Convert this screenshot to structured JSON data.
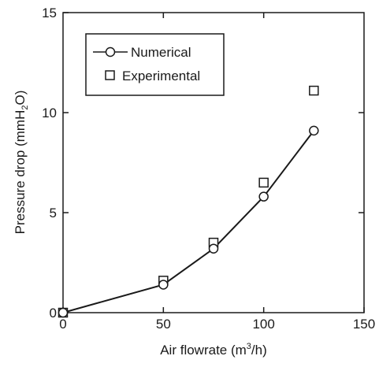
{
  "chart_data": {
    "type": "line",
    "xlabel": {
      "before_superscript": "Air flowrate (m",
      "superscript": "3",
      "after_superscript": "/h)"
    },
    "ylabel": {
      "before_subscript": "Pressure drop (mmH",
      "subscript": "2",
      "after_subscript": "O)"
    },
    "xlim": [
      0,
      150
    ],
    "ylim": [
      0,
      15
    ],
    "xticks": [
      0,
      50,
      100,
      150
    ],
    "yticks": [
      0,
      5,
      10,
      15
    ],
    "xtick_labels": [
      "0",
      "50",
      "100",
      "150"
    ],
    "ytick_labels": [
      "0",
      "5",
      "10",
      "15"
    ],
    "grid": false,
    "legend_position": "top-left",
    "series": [
      {
        "name": "Numerical",
        "style": "line with circle markers",
        "color": "#1a1a1a",
        "x": [
          0,
          50,
          75,
          100,
          125
        ],
        "y": [
          0,
          1.4,
          3.2,
          5.8,
          9.1
        ]
      },
      {
        "name": "Experimental",
        "style": "square markers",
        "color": "#1a1a1a",
        "x": [
          0,
          50,
          75,
          100,
          125
        ],
        "y": [
          0,
          1.6,
          3.5,
          6.5,
          11.1
        ]
      }
    ]
  }
}
